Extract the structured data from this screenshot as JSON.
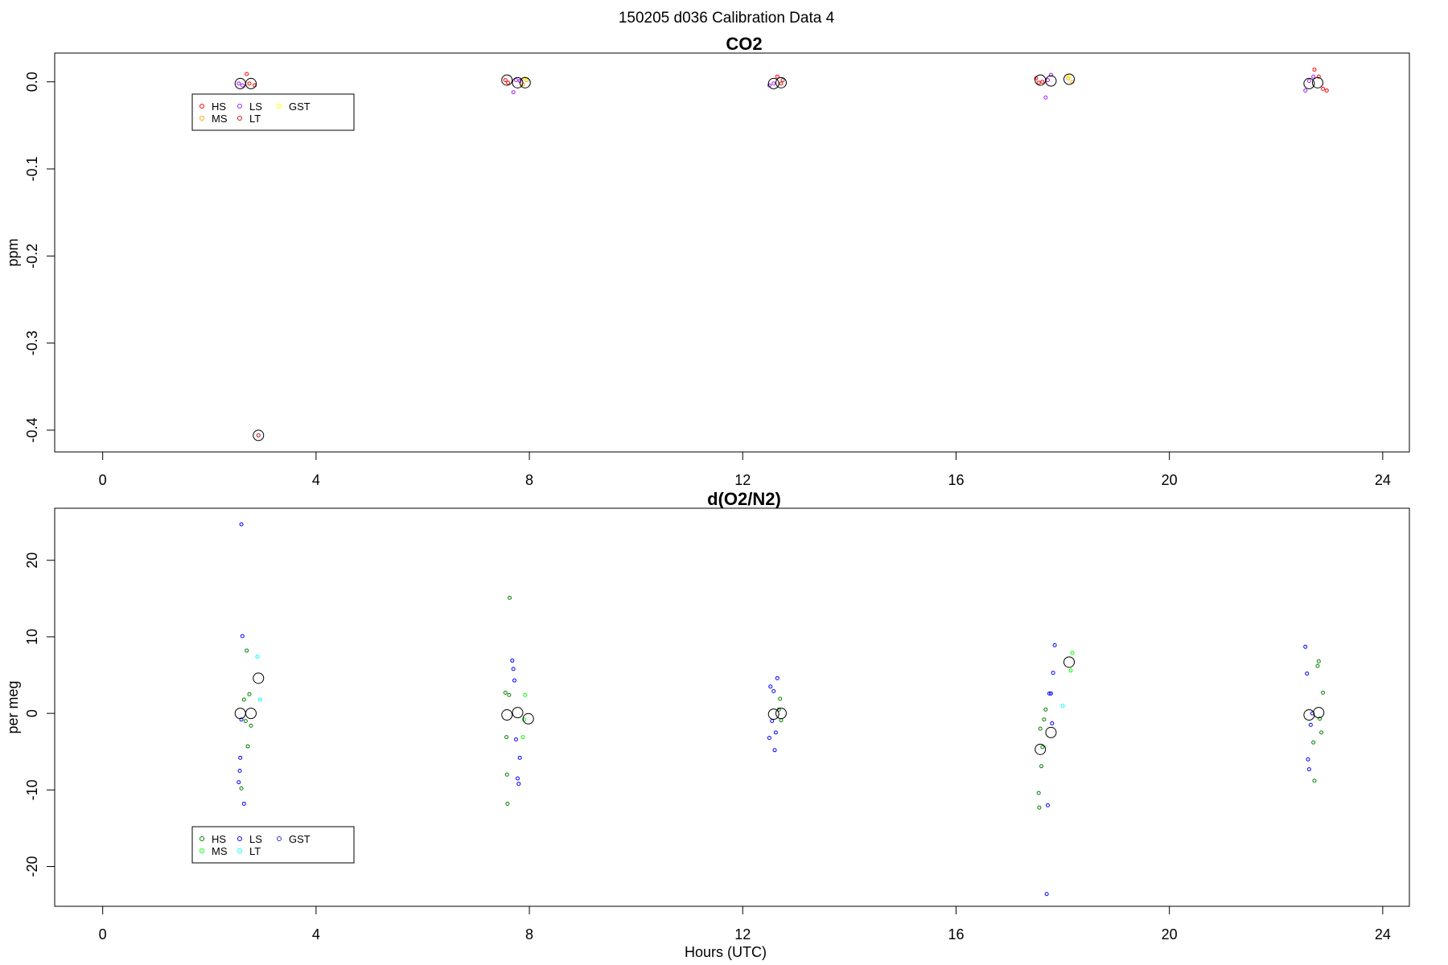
{
  "figure_title": "150205   d036   Calibration Data 4",
  "chart_data": [
    {
      "type": "scatter",
      "title": "CO2",
      "xlabel": "",
      "ylabel": "ppm",
      "xlim": [
        -0.9,
        24.5
      ],
      "ylim": [
        -0.425,
        0.033
      ],
      "xticks": [
        0,
        4,
        8,
        12,
        16,
        20,
        24
      ],
      "yticks": [
        0.0,
        -0.1,
        -0.2,
        -0.3,
        -0.4
      ],
      "ytick_labels": [
        "0.0",
        "-0.1",
        "-0.2",
        "-0.3",
        "-0.4"
      ],
      "grid": false,
      "legend": {
        "placement": "top-left",
        "entries": [
          {
            "label": "HS",
            "color": "#ff0000"
          },
          {
            "label": "MS",
            "color": "#ffa500"
          },
          {
            "label": "LS",
            "color": "#a020f0"
          },
          {
            "label": "LT",
            "color": "#b22222"
          },
          {
            "label": "GST",
            "color": "#ffff00"
          }
        ]
      },
      "series": [
        {
          "name": "HS",
          "color": "#ff0000",
          "points": [
            [
              2.7,
              0.009
            ],
            [
              2.75,
              -0.002
            ],
            [
              2.85,
              -0.004
            ],
            [
              7.55,
              0.002
            ],
            [
              7.6,
              -0.001
            ],
            [
              12.65,
              0.006
            ],
            [
              12.72,
              -0.002
            ],
            [
              17.5,
              0.004
            ],
            [
              17.55,
              -0.001
            ],
            [
              17.62,
              0.0
            ],
            [
              22.72,
              0.014
            ],
            [
              22.8,
              0.006
            ],
            [
              22.88,
              -0.008
            ],
            [
              22.95,
              -0.01
            ]
          ]
        },
        {
          "name": "MS",
          "color": "#ffa500",
          "points": [
            [
              7.88,
              -0.003
            ],
            [
              7.95,
              0.002
            ],
            [
              18.1,
              0.004
            ],
            [
              18.18,
              0.0
            ]
          ]
        },
        {
          "name": "LS",
          "color": "#a020f0",
          "points": [
            [
              2.55,
              -0.002
            ],
            [
              2.62,
              -0.004
            ],
            [
              7.7,
              -0.012
            ],
            [
              7.75,
              0.002
            ],
            [
              7.82,
              0.001
            ],
            [
              12.5,
              -0.004
            ],
            [
              12.58,
              -0.002
            ],
            [
              17.68,
              -0.018
            ],
            [
              17.72,
              0.002
            ],
            [
              17.78,
              0.008
            ],
            [
              22.55,
              -0.01
            ],
            [
              22.62,
              0.001
            ],
            [
              22.7,
              0.006
            ]
          ]
        },
        {
          "name": "LT",
          "color": "#b22222",
          "points": [
            [
              2.92,
              -0.406
            ],
            [
              12.75,
              0.002
            ]
          ]
        },
        {
          "name": "GST",
          "color": "#ffff00",
          "points": [
            [
              7.92,
              0.004
            ],
            [
              18.12,
              0.006
            ]
          ]
        },
        {
          "name": "",
          "color": "#000000",
          "big": true,
          "points": [
            [
              2.58,
              -0.002
            ],
            [
              2.78,
              -0.002
            ],
            [
              2.92,
              -0.406
            ],
            [
              7.58,
              0.002
            ],
            [
              7.78,
              -0.001
            ],
            [
              7.92,
              -0.001
            ],
            [
              12.58,
              -0.002
            ],
            [
              12.72,
              -0.001
            ],
            [
              17.58,
              0.002
            ],
            [
              17.78,
              0.001
            ],
            [
              18.12,
              0.003
            ],
            [
              22.62,
              -0.002
            ],
            [
              22.78,
              -0.001
            ]
          ]
        }
      ]
    },
    {
      "type": "scatter",
      "title": "d(O2/N2)",
      "xlabel": "Hours (UTC)",
      "ylabel": "per meg",
      "xlim": [
        -0.9,
        24.5
      ],
      "ylim": [
        -25.2,
        26.8
      ],
      "xticks": [
        0,
        4,
        8,
        12,
        16,
        20,
        24
      ],
      "yticks": [
        20,
        10,
        0,
        -10,
        -20
      ],
      "ytick_labels": [
        "20",
        "10",
        "0",
        "-10",
        "-20"
      ],
      "grid": false,
      "legend": {
        "placement": "bottom-left",
        "entries": [
          {
            "label": "HS",
            "color": "#008000"
          },
          {
            "label": "MS",
            "color": "#00ff00"
          },
          {
            "label": "LS",
            "color": "#0000ff"
          },
          {
            "label": "LT",
            "color": "#00ffff"
          },
          {
            "label": "GST",
            "color": "#3030c0"
          }
        ]
      },
      "series": [
        {
          "name": "HS",
          "color": "#008000",
          "points": [
            [
              2.7,
              8.2
            ],
            [
              2.72,
              -4.3
            ],
            [
              2.75,
              2.5
            ],
            [
              2.6,
              -9.8
            ],
            [
              2.65,
              1.8
            ],
            [
              2.68,
              -1.0
            ],
            [
              2.78,
              -1.6
            ],
            [
              7.55,
              2.7
            ],
            [
              7.57,
              -3.1
            ],
            [
              7.58,
              -8.0
            ],
            [
              7.59,
              -11.8
            ],
            [
              7.62,
              2.4
            ],
            [
              7.63,
              15.1
            ],
            [
              12.68,
              0.5
            ],
            [
              12.7,
              1.9
            ],
            [
              12.72,
              -0.9
            ],
            [
              17.55,
              -10.4
            ],
            [
              17.56,
              -12.3
            ],
            [
              17.6,
              -6.9
            ],
            [
              17.62,
              -4.4
            ],
            [
              17.65,
              -0.8
            ],
            [
              17.68,
              0.5
            ],
            [
              17.58,
              -2.0
            ],
            [
              22.7,
              -3.8
            ],
            [
              22.72,
              -8.8
            ],
            [
              22.78,
              6.2
            ],
            [
              22.8,
              6.8
            ],
            [
              22.82,
              -0.7
            ],
            [
              22.85,
              -2.5
            ],
            [
              22.88,
              2.7
            ]
          ]
        },
        {
          "name": "MS",
          "color": "#00ff00",
          "points": [
            [
              7.88,
              -3.1
            ],
            [
              7.9,
              -0.8
            ],
            [
              7.92,
              2.4
            ],
            [
              18.15,
              5.6
            ],
            [
              18.18,
              7.9
            ]
          ]
        },
        {
          "name": "LS",
          "color": "#0000ff",
          "points": [
            [
              2.55,
              -9.0
            ],
            [
              2.57,
              -7.5
            ],
            [
              2.58,
              -5.8
            ],
            [
              2.6,
              -0.8
            ],
            [
              2.62,
              10.1
            ],
            [
              2.65,
              -11.8
            ],
            [
              2.6,
              24.7
            ],
            [
              7.68,
              6.9
            ],
            [
              7.7,
              5.8
            ],
            [
              7.72,
              4.3
            ],
            [
              7.75,
              -3.4
            ],
            [
              7.78,
              -8.5
            ],
            [
              7.8,
              -9.2
            ],
            [
              7.82,
              -5.8
            ],
            [
              12.5,
              -3.2
            ],
            [
              12.52,
              3.5
            ],
            [
              12.55,
              -1.0
            ],
            [
              12.58,
              2.9
            ],
            [
              12.6,
              -4.8
            ],
            [
              12.62,
              -2.5
            ],
            [
              12.65,
              4.6
            ],
            [
              17.7,
              -23.6
            ],
            [
              17.72,
              -12.0
            ],
            [
              17.75,
              2.6
            ],
            [
              17.78,
              2.6
            ],
            [
              17.8,
              -1.3
            ],
            [
              17.82,
              5.3
            ],
            [
              17.85,
              8.9
            ],
            [
              22.55,
              8.7
            ],
            [
              22.58,
              5.2
            ],
            [
              22.6,
              -6.0
            ],
            [
              22.62,
              -7.3
            ],
            [
              22.65,
              -1.5
            ],
            [
              22.68,
              0.0
            ]
          ]
        },
        {
          "name": "LT",
          "color": "#00ffff",
          "points": [
            [
              2.9,
              7.4
            ],
            [
              2.95,
              1.8
            ],
            [
              18.0,
              1.0
            ]
          ]
        },
        {
          "name": "",
          "color": "#000000",
          "big": true,
          "points": [
            [
              2.58,
              0.0
            ],
            [
              2.78,
              0.0
            ],
            [
              2.92,
              4.6
            ],
            [
              7.58,
              -0.2
            ],
            [
              7.78,
              0.1
            ],
            [
              7.98,
              -0.7
            ],
            [
              12.58,
              -0.1
            ],
            [
              12.72,
              0.0
            ],
            [
              17.58,
              -4.7
            ],
            [
              17.78,
              -2.5
            ],
            [
              18.12,
              6.7
            ],
            [
              22.62,
              -0.2
            ],
            [
              22.8,
              0.1
            ]
          ]
        }
      ]
    }
  ]
}
